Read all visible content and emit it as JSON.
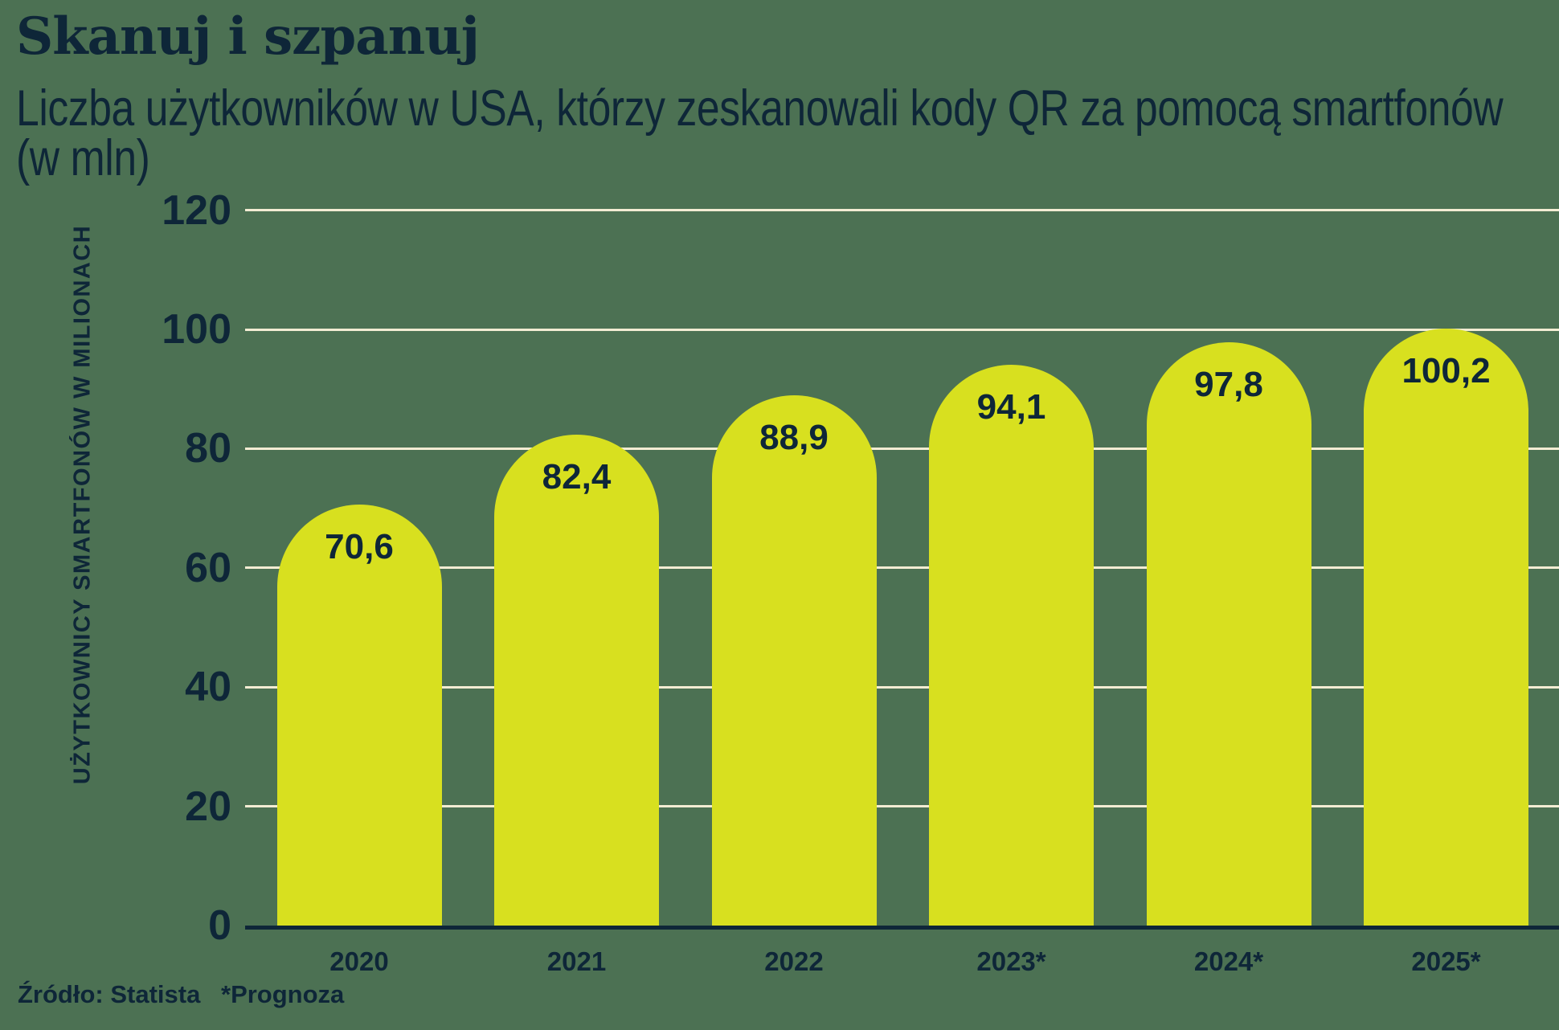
{
  "header": {
    "title": "Skanuj i szpanuj",
    "subtitle_line1": "Liczba użytkowników w USA, którzy zeskanowali kody QR za pomocą smartfonów",
    "subtitle_line2": "(w mln)"
  },
  "footer": {
    "source": "Źródło: Statista",
    "note": "*Prognoza"
  },
  "chart_data": {
    "type": "bar",
    "title": "Skanuj i szpanuj",
    "subtitle": "Liczba użytkowników w USA, którzy zeskanowali kody QR za pomocą smartfonów (w mln)",
    "categories": [
      "2020",
      "2021",
      "2022",
      "2023*",
      "2024*",
      "2025*"
    ],
    "values": [
      70.6,
      82.4,
      88.9,
      94.1,
      97.8,
      100.2
    ],
    "value_labels": [
      "70,6",
      "82,4",
      "88,9",
      "94,1",
      "97,8",
      "100,2"
    ],
    "ylabel": "UŻYTKOWNICY SMARTFONÓW W MILIONACH",
    "yticks": [
      0,
      20,
      40,
      60,
      80,
      100,
      120
    ],
    "ylim": [
      0,
      120
    ],
    "grid": true,
    "legend_position": "none",
    "bar_shape": "rounded-top",
    "colors": {
      "background": "#4C7153",
      "bar": "#D8E01F",
      "text": "#0E2638",
      "gridline": "#F2ECD3"
    }
  }
}
